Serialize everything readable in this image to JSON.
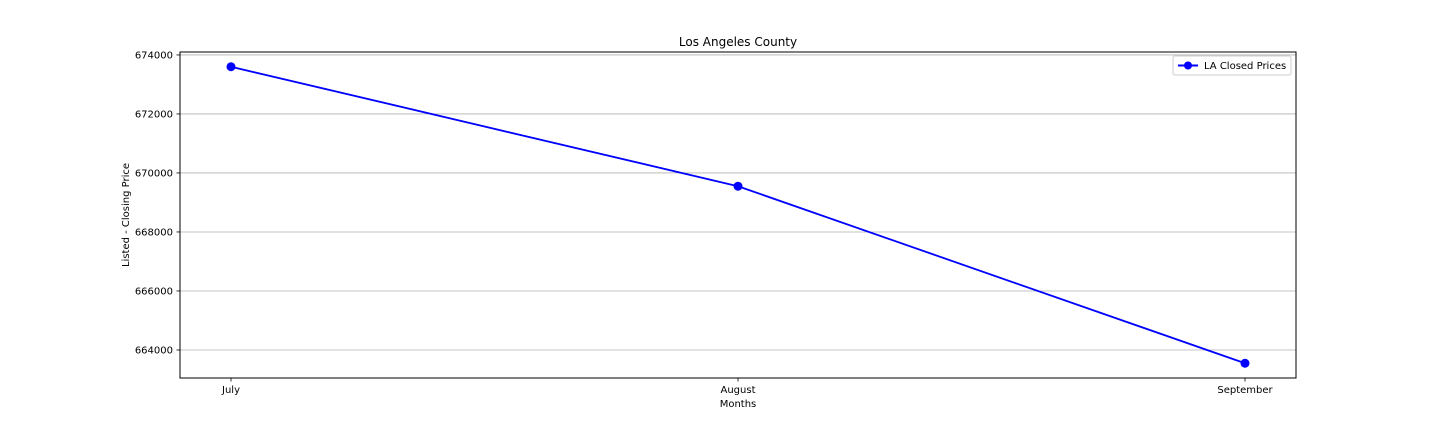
{
  "chart_data": {
    "type": "line",
    "title": "Los Angeles County",
    "xlabel": "Months",
    "ylabel": "Listed - Closing Price",
    "categories": [
      "July",
      "August",
      "September"
    ],
    "series": [
      {
        "name": "LA Closed Prices",
        "values": [
          673600,
          669550,
          663550
        ],
        "color": "#0000ff",
        "marker": "circle"
      }
    ],
    "ylim": [
      663050,
      674100
    ],
    "yticks": [
      664000,
      666000,
      668000,
      670000,
      672000,
      674000
    ],
    "grid": "horizontal",
    "legend_position": "upper-right"
  }
}
